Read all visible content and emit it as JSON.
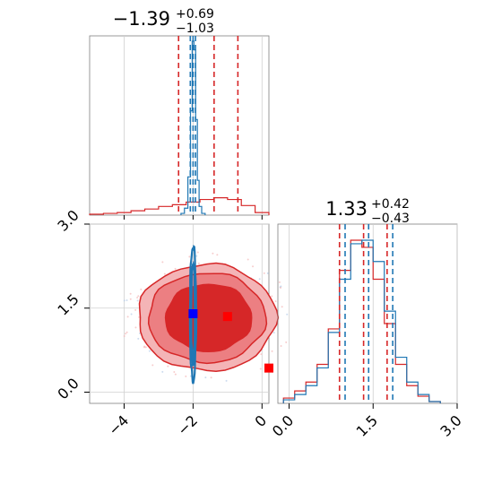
{
  "chart_data": {
    "type": "corner",
    "colors": {
      "red": "#d62728",
      "blue": "#1f77b4",
      "marker_blue": "#0000ff",
      "marker_red": "#ff0000"
    },
    "parameters": [
      {
        "title_value": "−1.39",
        "title_plus": "+0.69",
        "title_minus": "−1.03",
        "range": [
          -5.0,
          0.2
        ],
        "ticks": [
          -4,
          -2,
          0
        ],
        "tick_labels": [
          "−4",
          "−2",
          "0"
        ],
        "red_quantiles": [
          -2.42,
          -1.39,
          -0.7
        ],
        "blue_quantiles": [
          -2.08,
          -2.0,
          -1.93
        ]
      },
      {
        "title_value": "1.33",
        "title_plus": "+0.42",
        "title_minus": "−0.43",
        "range": [
          -0.2,
          3.0
        ],
        "ticks": [
          0.0,
          1.5,
          3.0
        ],
        "tick_labels": [
          "0.0",
          "1.5",
          "3.0"
        ],
        "red_quantiles": [
          0.9,
          1.33,
          1.75
        ],
        "blue_quantiles": [
          1.0,
          1.42,
          1.85
        ]
      }
    ],
    "hist_param0": {
      "red": {
        "x": [
          -4.8,
          -4.4,
          -4.0,
          -3.6,
          -3.2,
          -2.8,
          -2.4,
          -2.0,
          -1.6,
          -1.2,
          -0.8,
          -0.4,
          0.0
        ],
        "y": [
          0.5,
          1.0,
          1.5,
          2.5,
          3.5,
          5,
          6,
          7.5,
          9,
          10,
          9,
          5.5,
          1.5
        ]
      },
      "blue": {
        "x": [
          -2.3,
          -2.2,
          -2.1,
          -2.05,
          -2.0,
          -1.95,
          -1.9,
          -1.85,
          -1.8,
          -1.7
        ],
        "y": [
          1,
          4,
          22,
          60,
          100,
          95,
          55,
          20,
          5,
          1
        ]
      }
    },
    "hist_param1": {
      "red": {
        "x": [
          0.0,
          0.2,
          0.4,
          0.6,
          0.8,
          1.0,
          1.2,
          1.4,
          1.6,
          1.8,
          2.0,
          2.2,
          2.4,
          2.6
        ],
        "y": [
          3,
          7,
          12,
          22,
          42,
          75,
          92,
          88,
          70,
          45,
          22,
          10,
          4,
          1
        ]
      },
      "blue": {
        "x": [
          0.0,
          0.2,
          0.4,
          0.6,
          0.8,
          1.0,
          1.2,
          1.4,
          1.6,
          1.8,
          2.0,
          2.2,
          2.4,
          2.6
        ],
        "y": [
          2,
          5,
          10,
          20,
          40,
          70,
          90,
          92,
          80,
          52,
          26,
          12,
          5,
          1
        ]
      }
    },
    "joint": {
      "red_contours": [
        {
          "level": "outer",
          "cx": -1.6,
          "cy": 1.33,
          "rx": 2.0,
          "ry": 0.95
        },
        {
          "level": "middle",
          "cx": -1.6,
          "cy": 1.33,
          "rx": 1.7,
          "ry": 0.8
        },
        {
          "level": "inner",
          "cx": -1.55,
          "cy": 1.33,
          "rx": 1.25,
          "ry": 0.6
        }
      ],
      "blue_contours": [
        {
          "cx": -2.0,
          "cy": 1.4,
          "rx": 0.09,
          "ry": 1.2
        },
        {
          "cx": -2.0,
          "cy": 1.4,
          "rx": 0.05,
          "ry": 0.9
        }
      ],
      "red_markers": [
        {
          "x": -1.0,
          "y": 1.35
        },
        {
          "x": 0.2,
          "y": 0.43
        }
      ],
      "blue_markers": [
        {
          "x": -2.0,
          "y": 1.4
        }
      ]
    }
  }
}
